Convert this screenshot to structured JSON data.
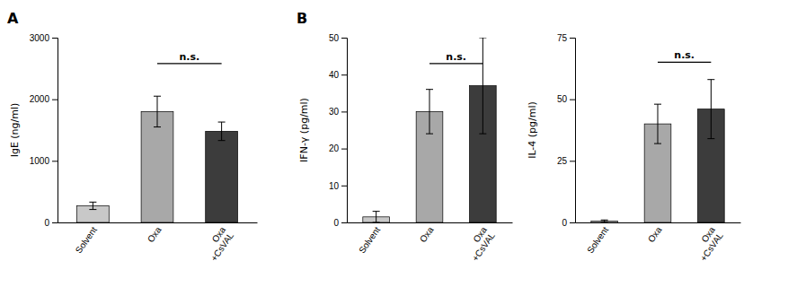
{
  "chart_data": [
    {
      "type": "bar",
      "title": "A",
      "categories": [
        "Solvent",
        "Oxa",
        "Oxa\n+CsVAL"
      ],
      "values": [
        270,
        1800,
        1480
      ],
      "errors": [
        60,
        250,
        150
      ],
      "colors": [
        "#c8c8c8",
        "#a8a8a8",
        "#3c3c3c"
      ],
      "y_label": "IgE (ng/ml)",
      "ylim": [
        0,
        3000
      ],
      "yticks": [
        0,
        1000,
        2000,
        3000
      ],
      "grid": false,
      "annotations": [
        {
          "text": "n.s.",
          "categories": [
            "Oxa",
            "Oxa\n+CsVAL"
          ],
          "y": 2580
        }
      ]
    },
    {
      "type": "bar",
      "title": "B",
      "categories": [
        "Solvent",
        "Oxa",
        "Oxa\n+CsVAL"
      ],
      "values": [
        1.5,
        30,
        37
      ],
      "errors": [
        1.5,
        6,
        13
      ],
      "colors": [
        "#c8c8c8",
        "#a8a8a8",
        "#3c3c3c"
      ],
      "y_label": "IFN-γ (pg/ml)",
      "ylim": [
        0,
        50
      ],
      "yticks": [
        0,
        10,
        20,
        30,
        40,
        50
      ],
      "grid": false,
      "annotations": [
        {
          "text": "n.s.",
          "categories": [
            "Oxa",
            "Oxa\n+CsVAL"
          ],
          "y": 43
        }
      ]
    },
    {
      "type": "bar",
      "categories": [
        "Solvent",
        "Oxa",
        "Oxa\n+CsVAL"
      ],
      "values": [
        0.5,
        40,
        46
      ],
      "errors": [
        0.5,
        8,
        12
      ],
      "colors": [
        "#c8c8c8",
        "#a8a8a8",
        "#3c3c3c"
      ],
      "y_label": "IL-4 (pg/ml)",
      "ylim": [
        0,
        75
      ],
      "yticks": [
        0,
        25,
        50,
        75
      ],
      "grid": false,
      "annotations": [
        {
          "text": "n.s.",
          "categories": [
            "Oxa",
            "Oxa\n+CsVAL"
          ],
          "y": 65
        }
      ]
    }
  ]
}
